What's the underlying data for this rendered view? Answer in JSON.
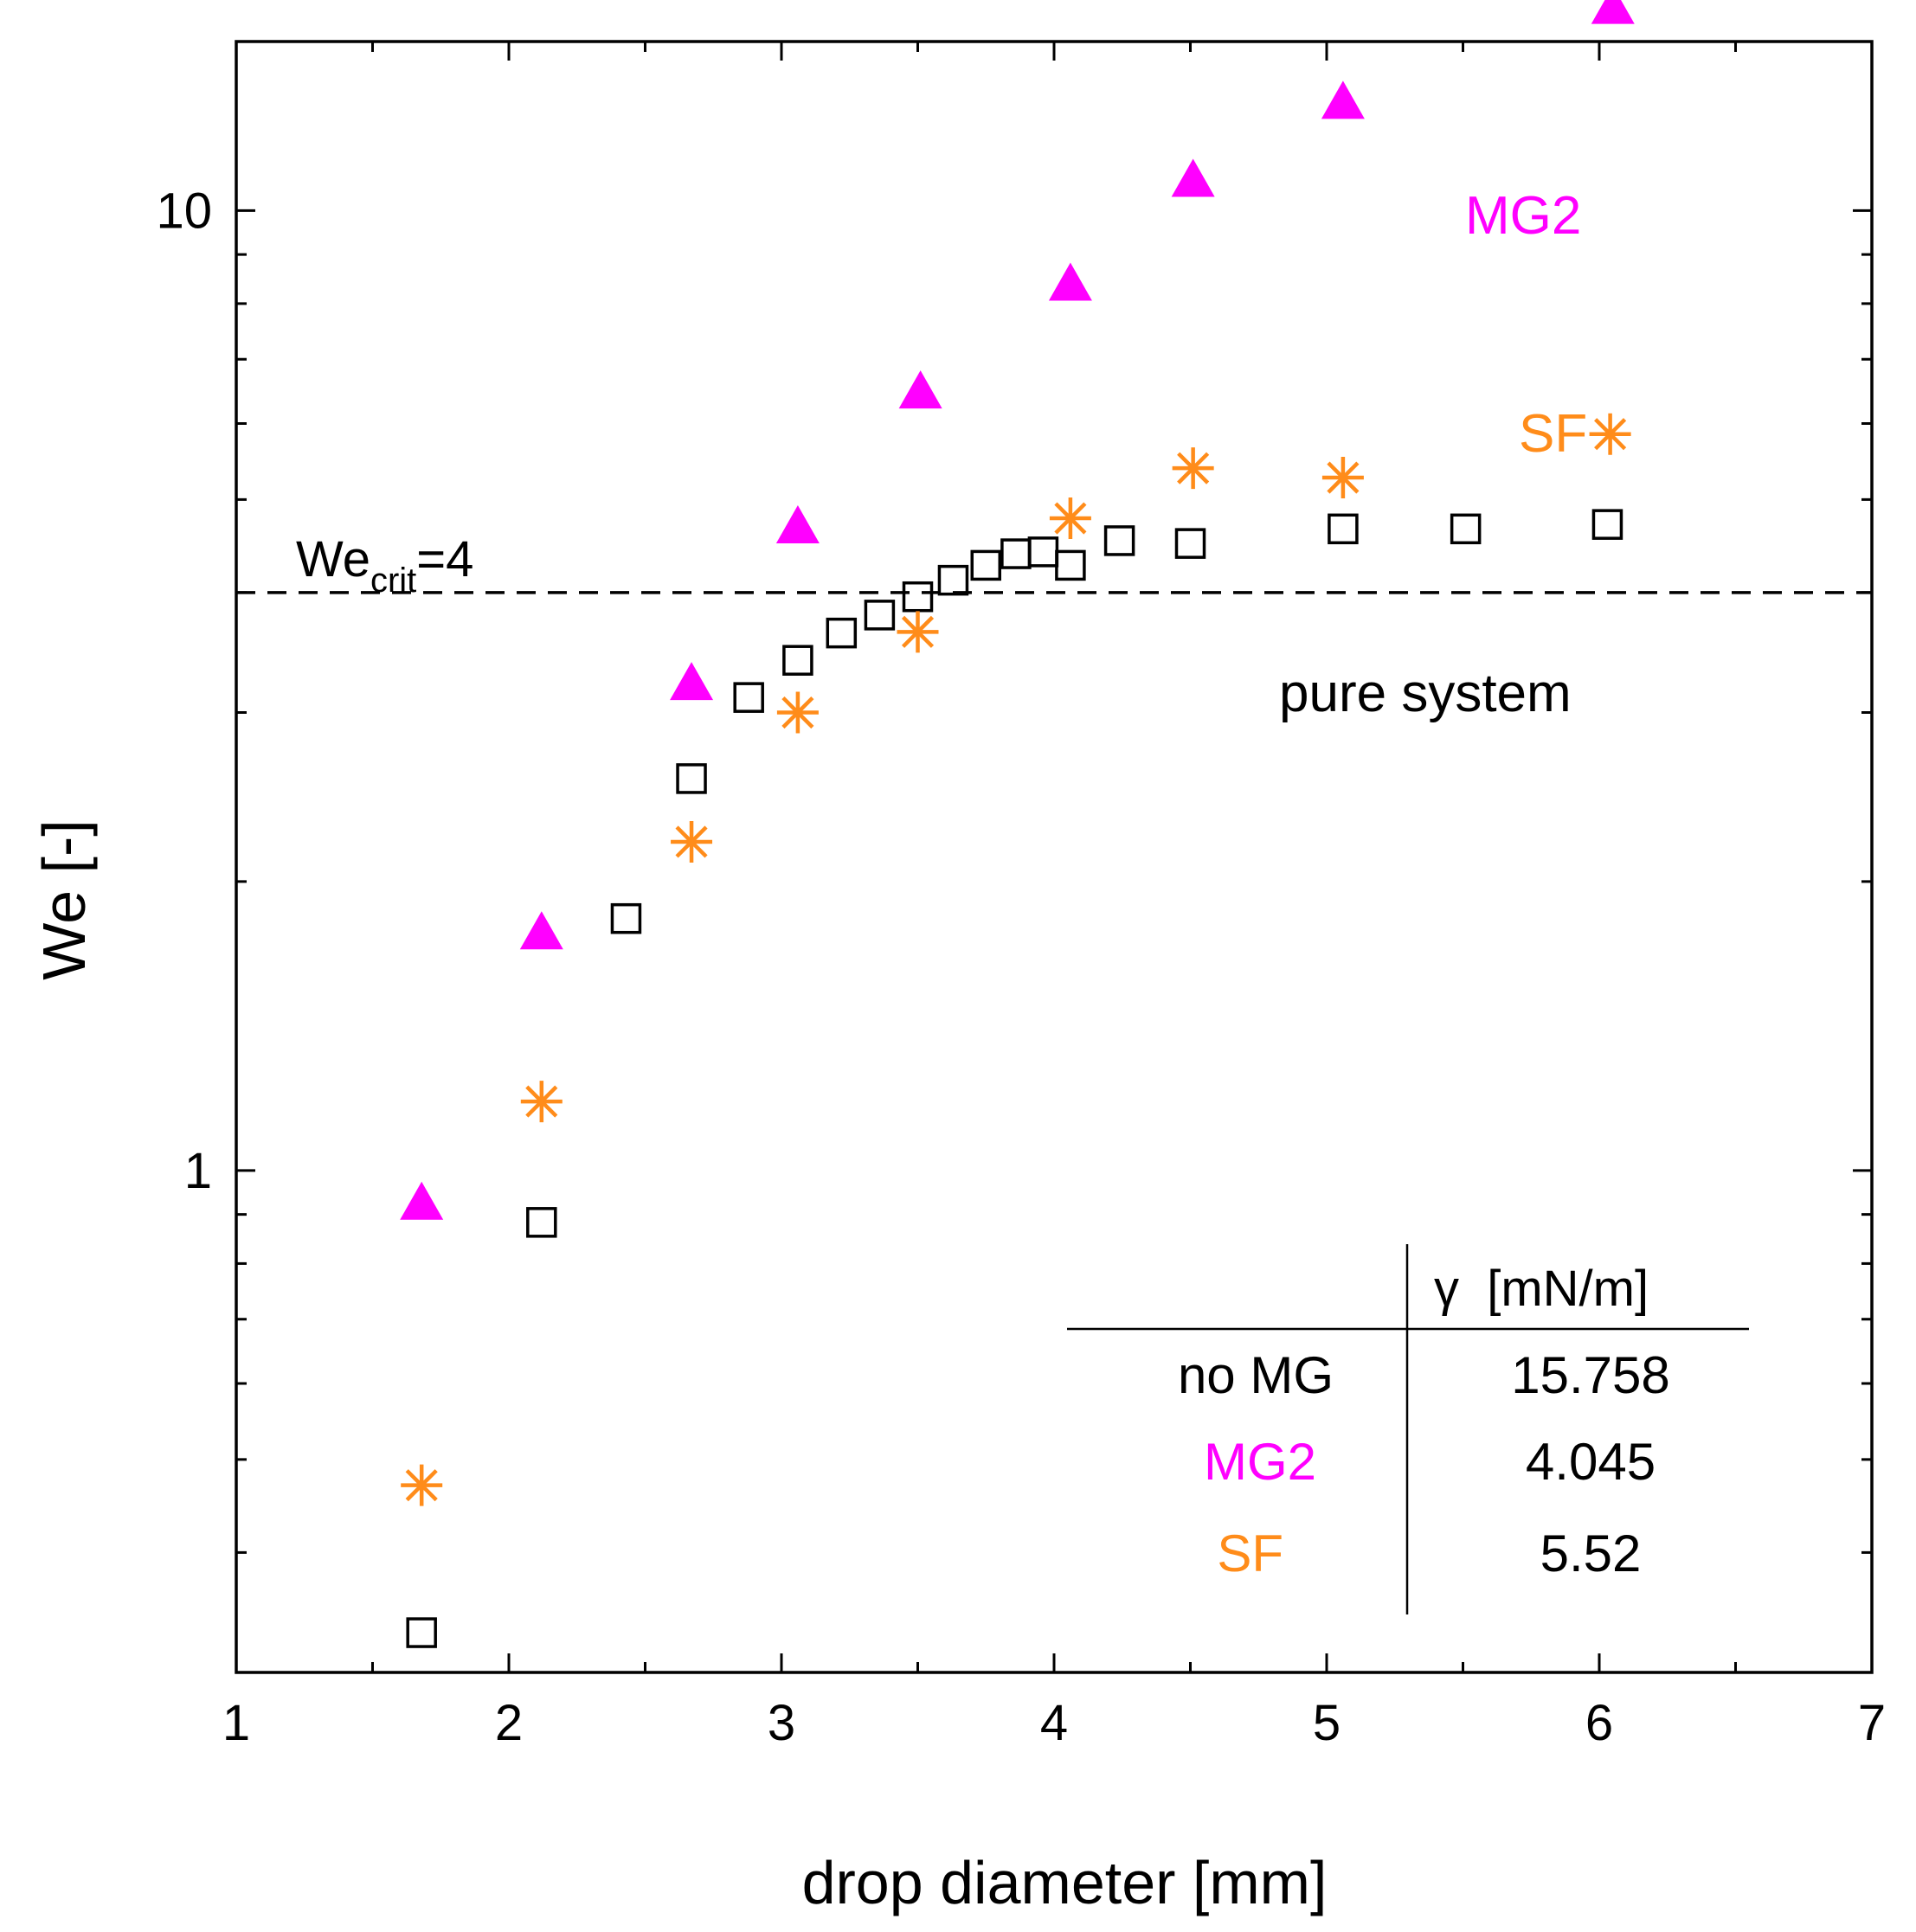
{
  "chart_data": {
    "type": "scatter",
    "xlabel": "drop diameter [mm]",
    "ylabel": "We [-]",
    "xlim": [
      1,
      7
    ],
    "ylim": [
      0.3,
      15
    ],
    "y_scale": "log",
    "x_ticks": [
      1,
      2,
      3,
      4,
      5,
      6,
      7
    ],
    "y_tick_labels": [
      {
        "value": 1,
        "label": "1"
      },
      {
        "value": 10,
        "label": "10"
      }
    ],
    "series": [
      {
        "name": "pure system",
        "marker": "open-square",
        "color": "#000000",
        "x": [
          1.68,
          2.12,
          2.43,
          2.67,
          2.88,
          3.06,
          3.22,
          3.36,
          3.5,
          3.63,
          3.75,
          3.86,
          3.96,
          4.06,
          4.24,
          4.5,
          5.06,
          5.51,
          6.03
        ],
        "y": [
          0.33,
          0.883,
          1.83,
          2.56,
          3.11,
          3.4,
          3.63,
          3.79,
          3.96,
          4.12,
          4.27,
          4.39,
          4.41,
          4.27,
          4.53,
          4.5,
          4.66,
          4.66,
          4.71
        ]
      },
      {
        "name": "MG2",
        "marker": "filled-triangle",
        "color": "#ff00ff",
        "x": [
          1.68,
          2.12,
          2.67,
          3.06,
          3.51,
          4.06,
          4.51,
          5.06,
          6.05
        ],
        "y": [
          0.92,
          1.76,
          3.2,
          4.66,
          6.44,
          8.34,
          10.7,
          12.9,
          16.2
        ]
      },
      {
        "name": "SF",
        "marker": "asterisk",
        "color": "#ff8c1a",
        "x": [
          1.68,
          2.12,
          2.67,
          3.06,
          3.5,
          4.06,
          4.51,
          5.06,
          6.04
        ],
        "y": [
          0.47,
          1.18,
          2.2,
          3.0,
          3.64,
          4.78,
          5.39,
          5.27,
          5.85
        ]
      }
    ],
    "reference_line": {
      "y": 4,
      "style": "dashed",
      "label_main": "We",
      "label_sub": "crit",
      "label_rest": "=4"
    },
    "annotations": {
      "mg2_label": "MG2",
      "sf_label": "SF",
      "pure_label": "pure system"
    },
    "inset_table": {
      "header_col1": "",
      "header_col2": "γ  [mN/m]",
      "rows": [
        {
          "name": "no MG",
          "value": "15.758",
          "color": "#000000"
        },
        {
          "name": "MG2",
          "value": "4.045",
          "color": "#ff00ff"
        },
        {
          "name": "SF",
          "value": "5.52",
          "color": "#ff8c1a"
        }
      ]
    }
  }
}
